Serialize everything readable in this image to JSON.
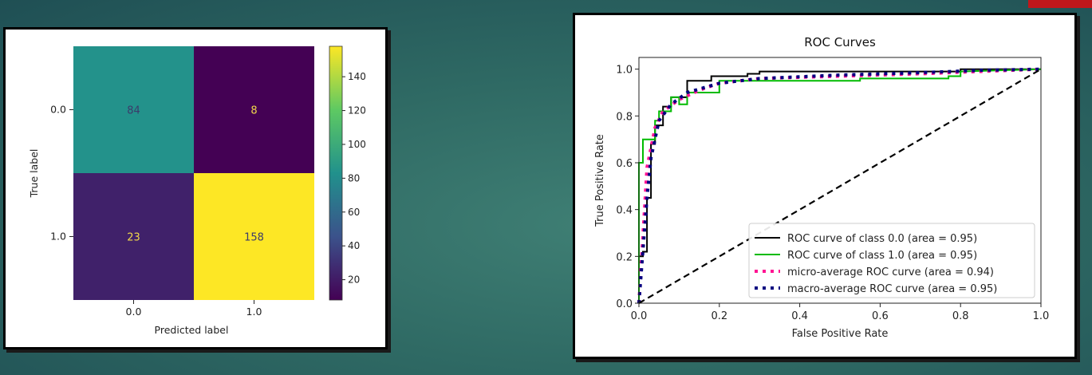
{
  "colors": {
    "accent": "#c0171b"
  },
  "chart_data": [
    {
      "type": "heatmap",
      "xlabel": "Predicted label",
      "ylabel": "True label",
      "x_categories": [
        "0.0",
        "1.0"
      ],
      "y_categories": [
        "0.0",
        "1.0"
      ],
      "matrix": [
        [
          84,
          8
        ],
        [
          23,
          158
        ]
      ],
      "colormap": "viridis",
      "colorbar_ticks": [
        "20",
        "40",
        "60",
        "80",
        "100",
        "120",
        "140"
      ],
      "colorbar_range": [
        8,
        158
      ]
    },
    {
      "type": "line",
      "title": "ROC Curves",
      "xlabel": "False Positive Rate",
      "ylabel": "True Positive Rate",
      "xlim": [
        0,
        1
      ],
      "ylim": [
        0,
        1.05
      ],
      "xticks": [
        "0.0",
        "0.2",
        "0.4",
        "0.6",
        "0.8",
        "1.0"
      ],
      "yticks": [
        "0.0",
        "0.2",
        "0.4",
        "0.6",
        "0.8",
        "1.0"
      ],
      "legend_position": "lower-right",
      "series": [
        {
          "name": "ROC curve of class 0.0 (area = 0.95)",
          "color": "#000000",
          "style": "solid",
          "x": [
            0,
            0,
            0.01,
            0.01,
            0.02,
            0.02,
            0.03,
            0.03,
            0.04,
            0.04,
            0.06,
            0.06,
            0.08,
            0.08,
            0.12,
            0.12,
            0.18,
            0.18,
            0.27,
            0.27,
            0.3,
            0.3,
            0.8,
            0.8,
            1.0
          ],
          "y": [
            0,
            0.2,
            0.2,
            0.22,
            0.22,
            0.45,
            0.45,
            0.68,
            0.68,
            0.76,
            0.76,
            0.84,
            0.84,
            0.88,
            0.88,
            0.95,
            0.95,
            0.97,
            0.97,
            0.98,
            0.98,
            0.99,
            0.99,
            1.0,
            1.0
          ]
        },
        {
          "name": "ROC curve of class 1.0 (area = 0.95)",
          "color": "#00bb00",
          "style": "solid",
          "x": [
            0,
            0,
            0.01,
            0.01,
            0.04,
            0.04,
            0.05,
            0.05,
            0.08,
            0.08,
            0.1,
            0.1,
            0.12,
            0.12,
            0.2,
            0.2,
            0.55,
            0.55,
            0.77,
            0.77,
            0.8,
            0.8,
            1.0
          ],
          "y": [
            0,
            0.6,
            0.6,
            0.7,
            0.7,
            0.78,
            0.78,
            0.82,
            0.82,
            0.88,
            0.88,
            0.85,
            0.85,
            0.9,
            0.9,
            0.95,
            0.95,
            0.96,
            0.96,
            0.97,
            0.97,
            0.99,
            1.0
          ]
        },
        {
          "name": "micro-average ROC curve (area = 0.94)",
          "color": "#ff1493",
          "style": "dotted",
          "x": [
            0,
            0.02,
            0.04,
            0.06,
            0.1,
            0.15,
            0.2,
            0.3,
            0.5,
            0.7,
            0.85,
            1.0
          ],
          "y": [
            0,
            0.58,
            0.75,
            0.82,
            0.87,
            0.91,
            0.94,
            0.96,
            0.97,
            0.98,
            0.99,
            1.0
          ]
        },
        {
          "name": "macro-average ROC curve (area = 0.95)",
          "color": "#000080",
          "style": "dotted",
          "x": [
            0,
            0.02,
            0.03,
            0.05,
            0.08,
            0.12,
            0.2,
            0.3,
            0.5,
            0.7,
            0.85,
            1.0
          ],
          "y": [
            0,
            0.45,
            0.62,
            0.78,
            0.85,
            0.9,
            0.94,
            0.96,
            0.975,
            0.985,
            0.995,
            1.0
          ]
        },
        {
          "name": "",
          "color": "#000000",
          "style": "dashed",
          "x": [
            0,
            1
          ],
          "y": [
            0,
            1
          ]
        }
      ]
    }
  ]
}
